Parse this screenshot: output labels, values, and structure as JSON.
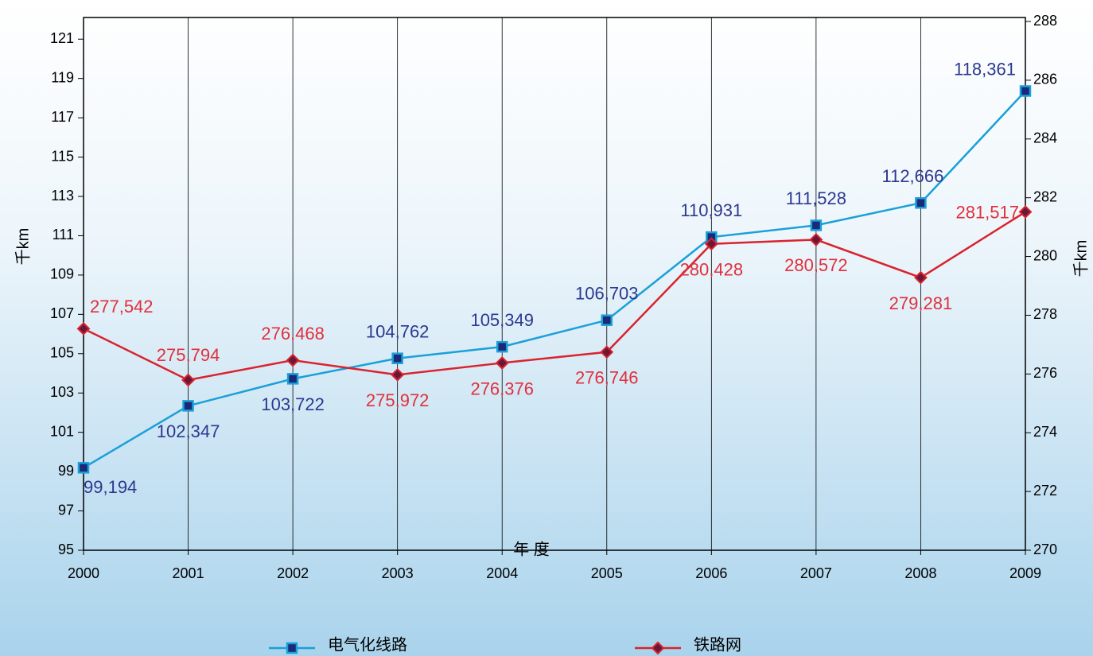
{
  "chart_data": {
    "type": "line",
    "x_label": "年 度",
    "y_label": "千km",
    "y2_label": "千km",
    "categories": [
      "2000",
      "2001",
      "2002",
      "2003",
      "2004",
      "2005",
      "2006",
      "2007",
      "2008",
      "2009"
    ],
    "series": [
      {
        "name": "电气化线路",
        "color": "#1aa0d8",
        "marker": "square",
        "values": [
          99.194,
          102.347,
          103.722,
          104.762,
          105.349,
          106.703,
          110.931,
          111.528,
          112.666,
          118.361
        ],
        "value_labels": [
          "99,194",
          "102,347",
          "103,722",
          "104,762",
          "105,349",
          "106,703",
          "110,931",
          "111,528",
          "112,666",
          "118,361"
        ]
      },
      {
        "name": "铁路网",
        "color": "#d9232e",
        "marker": "diamond",
        "axis": "y2",
        "values": [
          277.542,
          275.794,
          276.468,
          275.972,
          276.376,
          276.746,
          280.428,
          280.572,
          279.281,
          281.517
        ],
        "value_labels": [
          "277,542",
          "275,794",
          "276,468",
          "275,972",
          "276,376",
          "276,746",
          "280,428",
          "280,572",
          "279,281",
          "281,517"
        ]
      }
    ],
    "ylim": [
      95,
      121.9
    ],
    "yticks": [
      95,
      97,
      99,
      101,
      103,
      105,
      107,
      109,
      111,
      113,
      115,
      117,
      119,
      121
    ],
    "y2lim": [
      270,
      288
    ],
    "y2ticks": [
      270,
      272,
      274,
      276,
      278,
      280,
      282,
      284,
      286,
      288
    ],
    "grid": true
  }
}
